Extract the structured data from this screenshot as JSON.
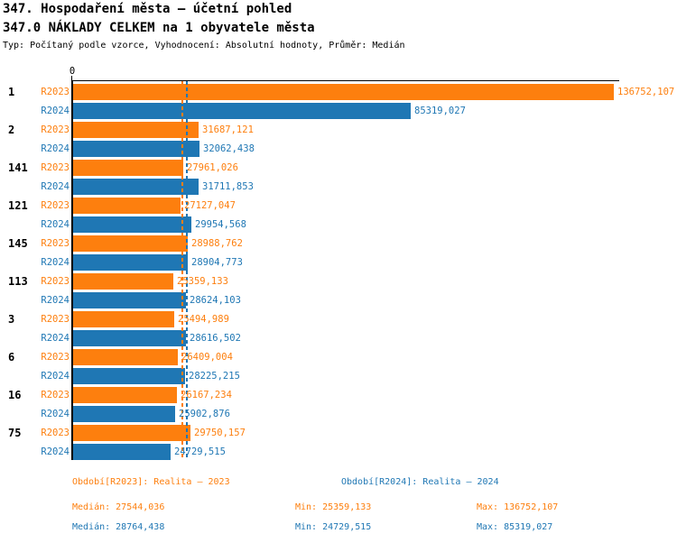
{
  "header": {
    "title": "347. Hospodaření města – účetní pohled",
    "subtitle": "347.0 NÁKLADY CELKEM na 1 obyvatele města",
    "meta": "Typ: Počítaný podle vzorce, Vyhodnocení: Absolutní hodnoty, Průměr: Medián"
  },
  "chart_data": {
    "type": "bar",
    "orientation": "horizontal",
    "grid": false,
    "x_axis": {
      "zero_label": "0",
      "max": 136752.107
    },
    "categories": [
      "1",
      "2",
      "141",
      "121",
      "145",
      "113",
      "3",
      "6",
      "16",
      "75"
    ],
    "series": [
      {
        "name": "R2023",
        "color": "#fd7f0e",
        "values": [
          136752.107,
          31687.121,
          27961.026,
          27127.047,
          28988.762,
          25359.133,
          25494.989,
          26409.004,
          26167.234,
          29750.157
        ],
        "labels": [
          "136752,107",
          "31687,121",
          "27961,026",
          "27127,047",
          "28988,762",
          "25359,133",
          "25494,989",
          "26409,004",
          "26167,234",
          "29750,157"
        ],
        "median": 27544.036
      },
      {
        "name": "R2024",
        "color": "#1f77b4",
        "values": [
          85319.027,
          32062.438,
          31711.853,
          29954.568,
          28904.773,
          28624.103,
          28616.502,
          28225.215,
          25902.876,
          24729.515
        ],
        "labels": [
          "85319,027",
          "32062,438",
          "31711,853",
          "29954,568",
          "28904,773",
          "28624,103",
          "28616,502",
          "28225,215",
          "25902,876",
          "24729,515"
        ],
        "median": 28764.438
      }
    ],
    "median_lines": {
      "r2023": 27544.036,
      "r2024": 28764.438
    }
  },
  "footer": {
    "periods": [
      "Období[R2023]: Realita – 2023",
      "Období[R2024]: Realita – 2024"
    ],
    "stats_r2023": {
      "median": "Medián: 27544,036",
      "min": "Min: 25359,133",
      "max": "Max: 136752,107"
    },
    "stats_r2024": {
      "median": "Medián: 28764,438",
      "min": "Min: 24729,515",
      "max": "Max: 85319,027"
    }
  }
}
